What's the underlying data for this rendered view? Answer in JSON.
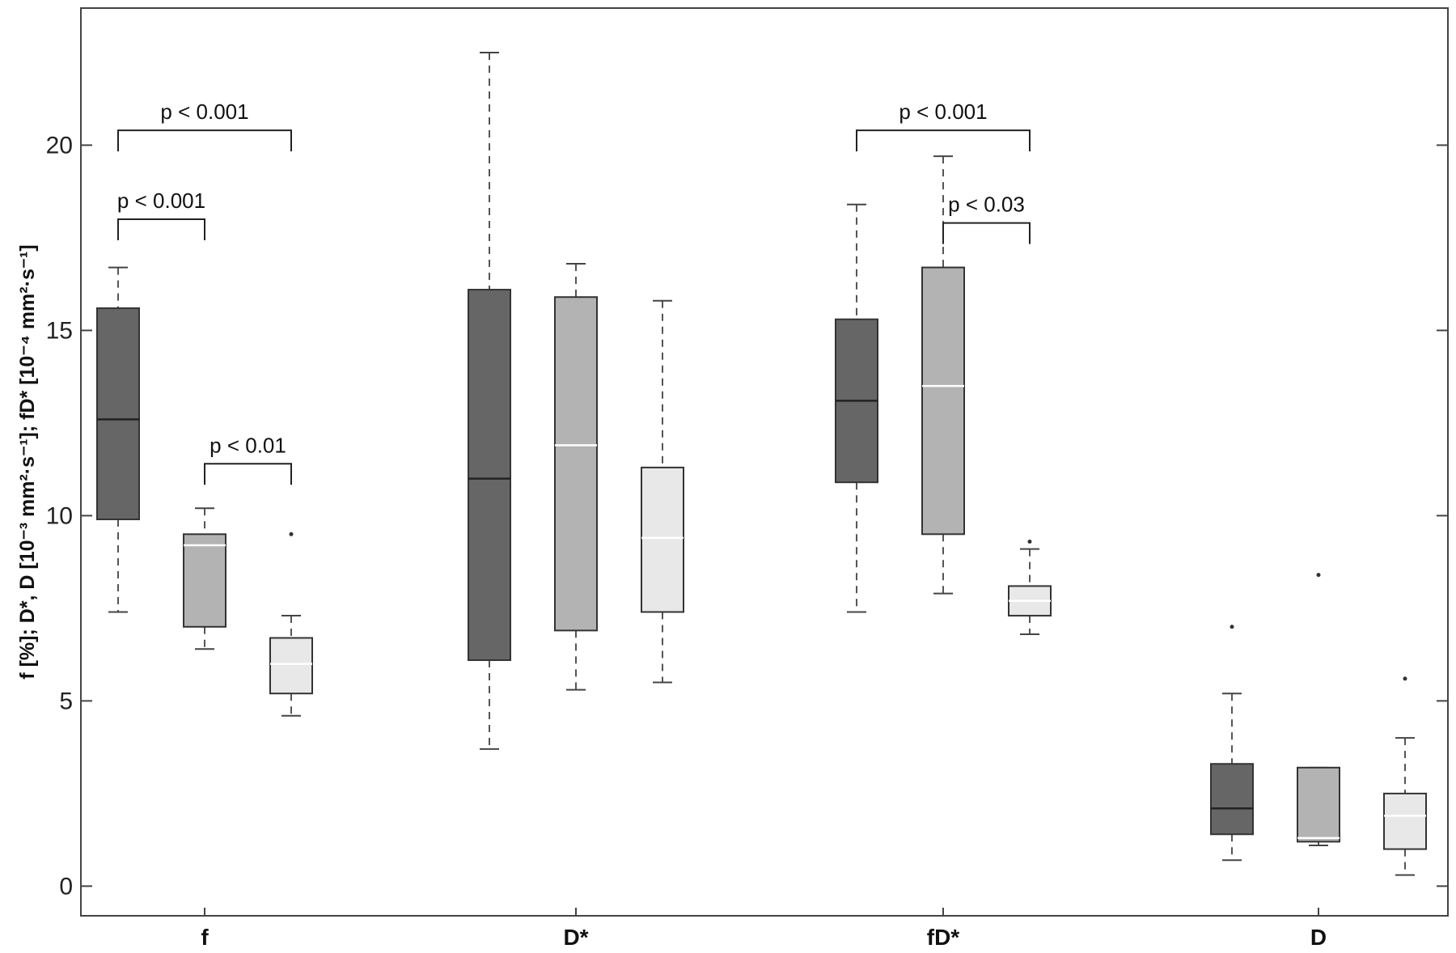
{
  "chart_data": {
    "type": "box",
    "ylabel": "f [%]; D*, D [10⁻³ mm²·s⁻¹]; fD* [10⁻⁴ mm²·s⁻¹]",
    "ylim": [
      -0.8,
      23.7
    ],
    "yticks": [
      0,
      5,
      10,
      15,
      20
    ],
    "ytick_labels": [
      "0",
      "5",
      "10",
      "15",
      "20"
    ],
    "grid": false,
    "categories": [
      "f",
      "D*",
      "fD*",
      "D"
    ],
    "colors": {
      "box_dark": "#666666",
      "box_mid": "#b3b3b3",
      "box_light": "#e8e8e8",
      "median_dark": "#222222",
      "median_light": "#ffffff"
    },
    "groups": [
      {
        "category": "f",
        "boxes": [
          {
            "whisker_low": 7.4,
            "q1": 9.9,
            "median": 12.6,
            "q3": 15.6,
            "whisker_high": 16.7,
            "outliers": []
          },
          {
            "whisker_low": 6.4,
            "q1": 7.0,
            "median": 9.2,
            "q3": 9.5,
            "whisker_high": 10.2,
            "outliers": []
          },
          {
            "whisker_low": 4.6,
            "q1": 5.2,
            "median": 6.0,
            "q3": 6.7,
            "whisker_high": 7.3,
            "outliers": [
              9.5
            ]
          }
        ]
      },
      {
        "category": "D*",
        "boxes": [
          {
            "whisker_low": 3.7,
            "q1": 6.1,
            "median": 11.0,
            "q3": 16.1,
            "whisker_high": 22.5,
            "outliers": []
          },
          {
            "whisker_low": 5.3,
            "q1": 6.9,
            "median": 11.9,
            "q3": 15.9,
            "whisker_high": 16.8,
            "outliers": []
          },
          {
            "whisker_low": 5.5,
            "q1": 7.4,
            "median": 9.4,
            "q3": 11.3,
            "whisker_high": 15.8,
            "outliers": []
          }
        ]
      },
      {
        "category": "fD*",
        "boxes": [
          {
            "whisker_low": 7.4,
            "q1": 10.9,
            "median": 13.1,
            "q3": 15.3,
            "whisker_high": 18.4,
            "outliers": []
          },
          {
            "whisker_low": 7.9,
            "q1": 9.5,
            "median": 13.5,
            "q3": 16.7,
            "whisker_high": 19.7,
            "outliers": []
          },
          {
            "whisker_low": 6.8,
            "q1": 7.3,
            "median": 7.7,
            "q3": 8.1,
            "whisker_high": 9.1,
            "outliers": [
              9.3
            ]
          }
        ]
      },
      {
        "category": "D",
        "boxes": [
          {
            "whisker_low": 0.7,
            "q1": 1.4,
            "median": 2.1,
            "q3": 3.3,
            "whisker_high": 5.2,
            "outliers": [
              7.0
            ]
          },
          {
            "whisker_low": 1.1,
            "q1": 1.2,
            "median": 1.3,
            "q3": 3.2,
            "whisker_high": 3.2,
            "outliers": [
              8.4
            ]
          },
          {
            "whisker_low": 0.3,
            "q1": 1.0,
            "median": 1.9,
            "q3": 2.5,
            "whisker_high": 4.0,
            "outliers": [
              5.6
            ]
          }
        ]
      }
    ],
    "annotations": [
      {
        "text": "p < 0.001",
        "group": 0,
        "from_box": 0,
        "to_box": 2,
        "level": 20.4
      },
      {
        "text": "p < 0.001",
        "group": 0,
        "from_box": 0,
        "to_box": 1,
        "level": 18.0
      },
      {
        "text": "p < 0.01",
        "group": 0,
        "from_box": 1,
        "to_box": 2,
        "level": 11.4
      },
      {
        "text": "p < 0.001",
        "group": 2,
        "from_box": 0,
        "to_box": 2,
        "level": 20.4
      },
      {
        "text": "p < 0.03",
        "group": 2,
        "from_box": 1,
        "to_box": 2,
        "level": 17.9
      }
    ]
  }
}
